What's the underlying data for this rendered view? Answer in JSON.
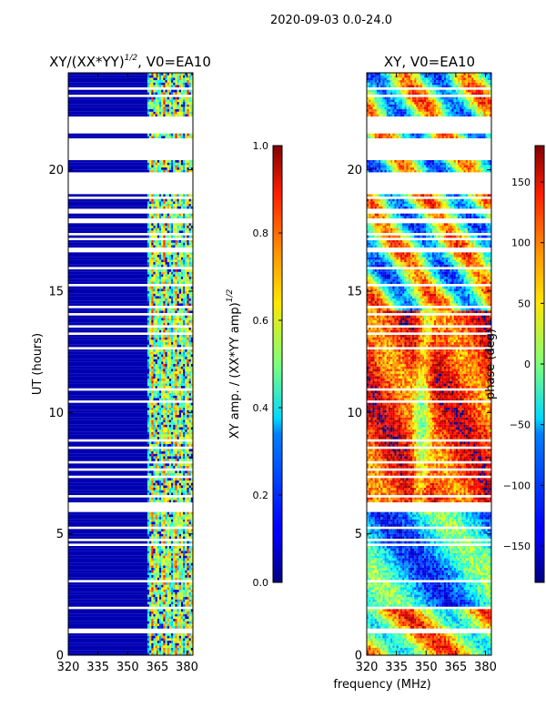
{
  "figure": {
    "suptitle": "2020-09-03 0.0-24.0",
    "shared_xlabel": "frequency (MHz)"
  },
  "chart_data": [
    {
      "type": "heatmap",
      "title": "XY/(XX*YY)",
      "title_sup": "1/2",
      "title_suffix": ", V0=EA10",
      "xlabel": "frequency (MHz)",
      "ylabel": "UT (hours)",
      "xlim": [
        320,
        383
      ],
      "ylim": [
        0,
        24
      ],
      "xticks": [
        320,
        335,
        350,
        365,
        380
      ],
      "yticks": [
        0,
        5,
        10,
        15,
        20
      ],
      "colorbar": {
        "label": "XY amp. / (XX*YY amp)",
        "label_sup": "1/2",
        "range": [
          0.0,
          1.0
        ],
        "ticks": [
          "0.0",
          "0.2",
          "0.4",
          "0.6",
          "0.8",
          "1.0"
        ],
        "tick_values": [
          0.0,
          0.2,
          0.4,
          0.6,
          0.8,
          1.0
        ],
        "colormap": "jet"
      },
      "data_description": "Values near 0 below ~360 MHz; 0.3-0.8 between ~360-383 MHz",
      "low_band_value": 0.05,
      "high_band_range_mhz": [
        360,
        383
      ],
      "high_band_values": [
        0.35,
        0.55,
        0.7,
        0.45,
        0.6,
        0.5
      ]
    },
    {
      "type": "heatmap",
      "title": "XY, V0=EA10",
      "xlabel": "frequency (MHz)",
      "ylabel": "",
      "xlim": [
        320,
        383
      ],
      "ylim": [
        0,
        24
      ],
      "xticks": [
        320,
        335,
        350,
        365,
        380
      ],
      "yticks": [
        0,
        5,
        10,
        15,
        20
      ],
      "colorbar": {
        "label": "phase (deg)",
        "range": [
          -180,
          180
        ],
        "ticks": [
          "−150",
          "−100",
          "−50",
          "0",
          "50",
          "100",
          "150"
        ],
        "tick_values": [
          -150,
          -100,
          -50,
          0,
          50,
          100,
          150
        ],
        "colormap": "jet"
      },
      "data_description": "Phase in degrees, widely varying; predominantly positive (red) between ~7-14 UT"
    }
  ],
  "flagged_ut_ranges": [
    [
      0.95,
      1.05
    ],
    [
      1.9,
      1.95
    ],
    [
      2.6,
      2.65
    ],
    [
      3.0,
      3.05
    ],
    [
      3.35,
      3.4
    ],
    [
      4.5,
      4.55
    ],
    [
      4.7,
      4.75
    ],
    [
      5.25,
      5.3
    ],
    [
      5.9,
      6.25
    ],
    [
      6.55,
      6.6
    ],
    [
      7.3,
      7.35
    ],
    [
      7.6,
      7.7
    ],
    [
      7.95,
      8.0
    ],
    [
      8.5,
      8.55
    ],
    [
      8.85,
      8.9
    ],
    [
      9.8,
      9.85
    ],
    [
      10.4,
      10.45
    ],
    [
      10.9,
      11.0
    ],
    [
      11.3,
      11.35
    ],
    [
      11.8,
      11.85
    ],
    [
      12.6,
      12.65
    ],
    [
      13.15,
      13.25
    ],
    [
      13.55,
      13.6
    ],
    [
      14.05,
      14.1
    ],
    [
      14.35,
      14.4
    ],
    [
      15.2,
      15.25
    ],
    [
      15.9,
      15.95
    ],
    [
      16.6,
      16.8
    ],
    [
      17.1,
      17.2
    ],
    [
      17.3,
      17.35
    ],
    [
      17.8,
      18.0
    ],
    [
      18.2,
      18.4
    ],
    [
      18.6,
      18.65
    ],
    [
      18.8,
      18.9
    ],
    [
      19.0,
      19.9
    ],
    [
      20.4,
      21.3
    ],
    [
      21.5,
      22.2
    ],
    [
      23.0,
      23.05
    ],
    [
      23.3,
      23.35
    ]
  ]
}
